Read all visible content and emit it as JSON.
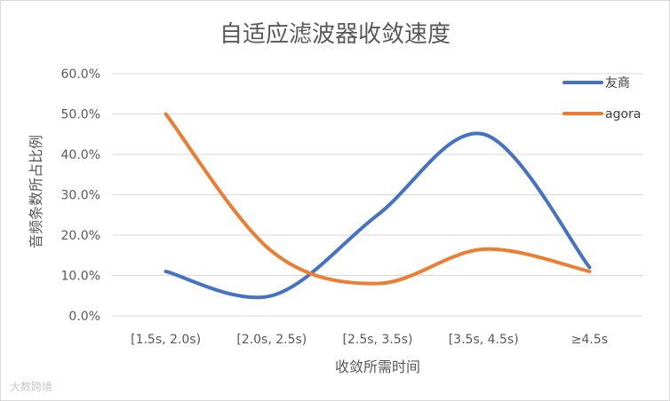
{
  "chart_data": {
    "type": "line",
    "title": "自适应滤波器收敛速度",
    "xlabel": "收敛所需时间",
    "ylabel": "音频条数所占比例",
    "categories": [
      "[1.5s, 2.0s)",
      "[2.0s, 2.5s)",
      "[2.5s, 3.5s)",
      "[3.5s, 4.5s)",
      "≥4.5s"
    ],
    "ylim": [
      0,
      0.6
    ],
    "yticks": [
      {
        "value": 0.0,
        "label": "0.0%"
      },
      {
        "value": 0.1,
        "label": "10.0%"
      },
      {
        "value": 0.2,
        "label": "20.0%"
      },
      {
        "value": 0.3,
        "label": "30.0%"
      },
      {
        "value": 0.4,
        "label": "40.0%"
      },
      {
        "value": 0.5,
        "label": "50.0%"
      },
      {
        "value": 0.6,
        "label": "60.0%"
      }
    ],
    "grid": true,
    "smooth": true,
    "legend_position": "top-right",
    "series": [
      {
        "name": "友商",
        "color": "#4472c4",
        "values": [
          0.11,
          0.05,
          0.25,
          0.45,
          0.12
        ]
      },
      {
        "name": "agora",
        "color": "#ed7d31",
        "values": [
          0.5,
          0.16,
          0.08,
          0.165,
          0.11
        ]
      }
    ]
  },
  "watermark": "大数跨境"
}
